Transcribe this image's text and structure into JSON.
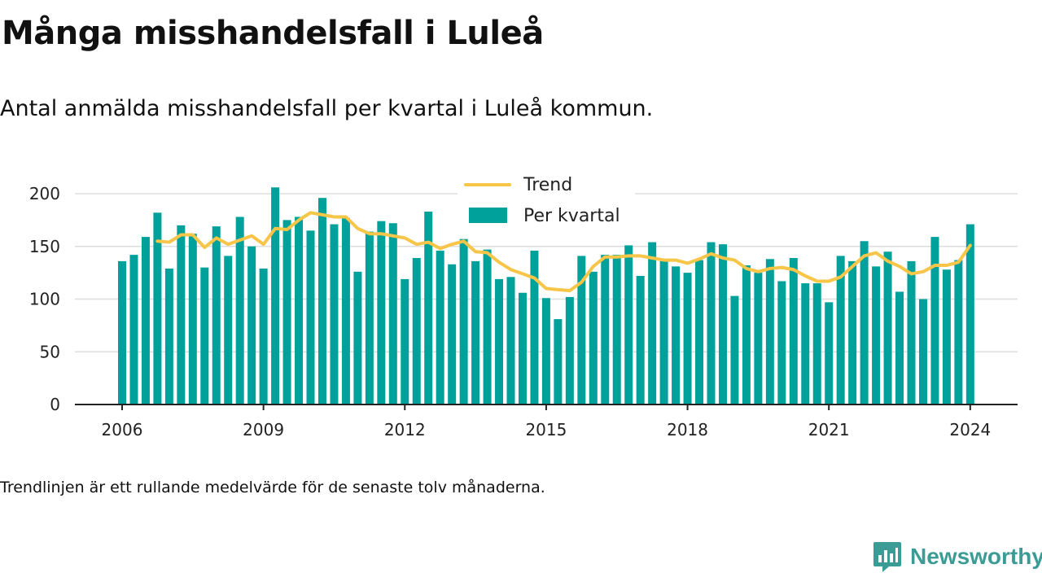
{
  "title": "Många misshandelsfall i Luleå",
  "subtitle": "Antal anmälda misshandelsfall per kvartal i Luleå kommun.",
  "footnote": "Trendlinjen är ett rullande medelvärde för de senaste tolv månaderna.",
  "brand": {
    "name": "Newsworthy",
    "icon": "newsworthy-chart-icon"
  },
  "colors": {
    "bars": "#00a19a",
    "trend": "#f7c548",
    "grid": "#dddddd",
    "axis": "#222222"
  },
  "chart_data": {
    "type": "bar",
    "x_start": 2006,
    "xticks": [
      "2006",
      "2009",
      "2012",
      "2015",
      "2018",
      "2021",
      "2024"
    ],
    "yticks": [
      "0",
      "50",
      "100",
      "150",
      "200"
    ],
    "ylim": [
      0,
      200
    ],
    "grid": true,
    "legend": {
      "position": "top-center",
      "entries": [
        "Trend",
        "Per kvartal"
      ]
    },
    "series": [
      {
        "name": "Per kvartal",
        "type": "bar",
        "values": [
          136,
          142,
          159,
          182,
          129,
          170,
          162,
          130,
          169,
          141,
          178,
          150,
          129,
          206,
          175,
          178,
          165,
          196,
          171,
          177,
          126,
          164,
          174,
          172,
          119,
          139,
          183,
          146,
          133,
          157,
          136,
          147,
          119,
          121,
          106,
          146,
          101,
          81,
          102,
          141,
          126,
          142,
          142,
          151,
          122,
          154,
          136,
          131,
          125,
          137,
          154,
          152,
          103,
          132,
          125,
          138,
          117,
          139,
          115,
          115,
          97,
          141,
          136,
          155,
          131,
          145,
          107,
          136,
          100,
          159,
          128,
          137,
          171
        ]
      },
      {
        "name": "Trend",
        "type": "line",
        "values": [
          null,
          null,
          null,
          155,
          154,
          161,
          161,
          149,
          158,
          152,
          156,
          160,
          152,
          167,
          166,
          175,
          182,
          180,
          178,
          178,
          167,
          162,
          162,
          160,
          158,
          152,
          154,
          148,
          152,
          155,
          145,
          144,
          135,
          128,
          124,
          120,
          110,
          109,
          108,
          116,
          131,
          140,
          140,
          141,
          141,
          139,
          137,
          137,
          134,
          138,
          143,
          139,
          137,
          129,
          126,
          129,
          130,
          128,
          122,
          117,
          117,
          121,
          131,
          141,
          144,
          136,
          131,
          124,
          126,
          132,
          132,
          135,
          151
        ]
      }
    ]
  }
}
